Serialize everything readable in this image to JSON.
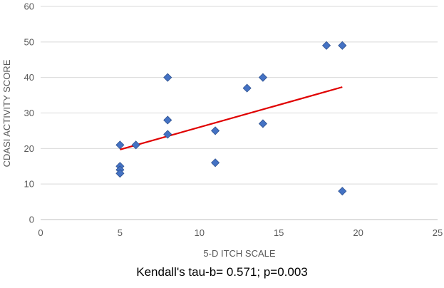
{
  "chart_data": {
    "type": "scatter",
    "title": "",
    "xlabel": "5-D ITCH SCALE",
    "ylabel": "CDASI ACTIVITY SCORE",
    "xlim": [
      0,
      25
    ],
    "ylim": [
      0,
      60
    ],
    "xticks": [
      0,
      5,
      10,
      15,
      20,
      25
    ],
    "yticks": [
      0,
      10,
      20,
      30,
      40,
      50,
      60
    ],
    "grid": "horizontal",
    "legend": "none",
    "series": [
      {
        "marker": "diamond",
        "color": "#4472C4",
        "points": [
          {
            "x": 5,
            "y": 21
          },
          {
            "x": 5,
            "y": 15
          },
          {
            "x": 5,
            "y": 14
          },
          {
            "x": 5,
            "y": 13
          },
          {
            "x": 6,
            "y": 21
          },
          {
            "x": 8,
            "y": 40
          },
          {
            "x": 8,
            "y": 28
          },
          {
            "x": 8,
            "y": 24
          },
          {
            "x": 11,
            "y": 25
          },
          {
            "x": 11,
            "y": 16
          },
          {
            "x": 13,
            "y": 37
          },
          {
            "x": 14,
            "y": 40
          },
          {
            "x": 14,
            "y": 27
          },
          {
            "x": 18,
            "y": 49
          },
          {
            "x": 19,
            "y": 49
          },
          {
            "x": 19,
            "y": 8
          }
        ]
      }
    ],
    "trendline": {
      "type": "linear",
      "color": "#E00000",
      "start": {
        "x": 5,
        "y": 19.7
      },
      "end": {
        "x": 19,
        "y": 37.3
      }
    },
    "caption": "Kendall's tau-b= 0.571; p=0.003"
  }
}
